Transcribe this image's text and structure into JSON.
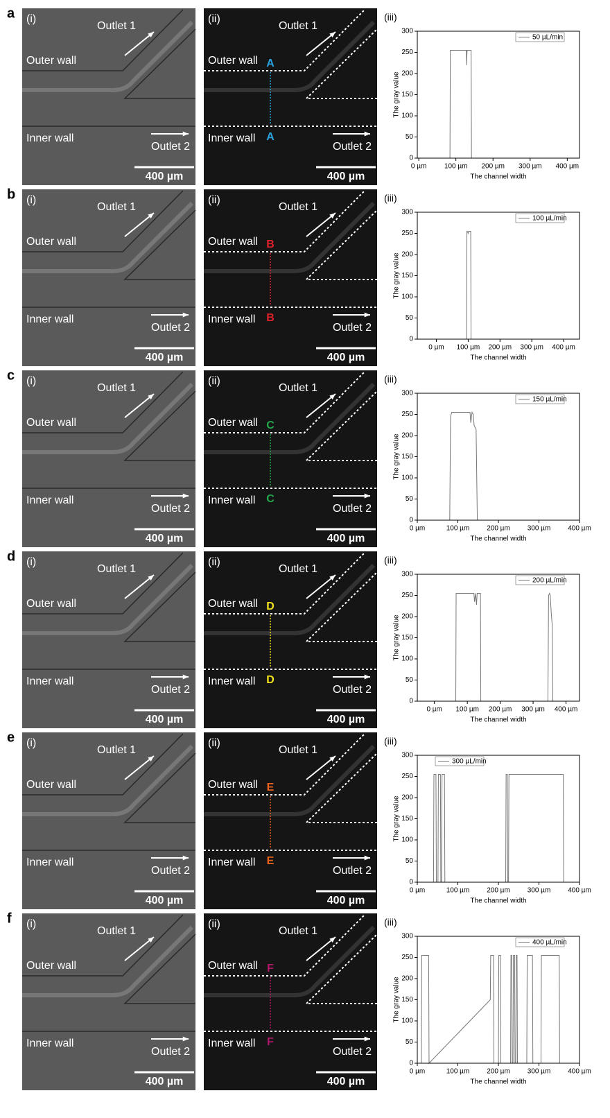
{
  "rows": [
    {
      "label": "a",
      "image1": {
        "tag": "(i)",
        "outlet1": "Outlet 1",
        "outer": "Outer wall",
        "inner": "Inner wall",
        "outlet2": "Outlet 2",
        "scale": "400 µm"
      },
      "image2": {
        "tag": "(ii)",
        "outlet1": "Outlet 1",
        "outer": "Outer wall",
        "inner": "Inner wall",
        "outlet2": "Outlet 2",
        "scale": "400 µm",
        "marker": "A",
        "marker_color": "#2aa3e0"
      },
      "chart_tag": "(iii)"
    },
    {
      "label": "b",
      "image1": {
        "tag": "(i)",
        "outlet1": "Outlet 1",
        "outer": "Outer wall",
        "inner": "Inner wall",
        "outlet2": "Outlet 2",
        "scale": "400 µm"
      },
      "image2": {
        "tag": "(ii)",
        "outlet1": "Outlet 1",
        "outer": "Outer wall",
        "inner": "Inner wall",
        "outlet2": "Outlet 2",
        "scale": "400 µm",
        "marker": "B",
        "marker_color": "#e0202a"
      },
      "chart_tag": "(iii)"
    },
    {
      "label": "c",
      "image1": {
        "tag": "(i)",
        "outlet1": "Outlet 1",
        "outer": "Outer wall",
        "inner": "Inner wall",
        "outlet2": "Outlet 2",
        "scale": "400 µm"
      },
      "image2": {
        "tag": "(ii)",
        "outlet1": "Outlet 1",
        "outer": "Outer wall",
        "inner": "Inner wall",
        "outlet2": "Outlet 2",
        "scale": "400 µm",
        "marker": "C",
        "marker_color": "#22a84a"
      },
      "chart_tag": "(iii)"
    },
    {
      "label": "d",
      "image1": {
        "tag": "(i)",
        "outlet1": "Outlet 1",
        "outer": "Outer wall",
        "inner": "Inner wall",
        "outlet2": "Outlet 2",
        "scale": "400 µm"
      },
      "image2": {
        "tag": "(ii)",
        "outlet1": "Outlet 1",
        "outer": "Outer wall",
        "inner": "Inner wall",
        "outlet2": "Outlet 2",
        "scale": "400 µm",
        "marker": "D",
        "marker_color": "#f2e21c"
      },
      "chart_tag": "(iii)"
    },
    {
      "label": "e",
      "image1": {
        "tag": "(i)",
        "outlet1": "Outlet 1",
        "outer": "Outer wall",
        "inner": "Inner wall",
        "outlet2": "Outlet 2",
        "scale": "400 µm"
      },
      "image2": {
        "tag": "(ii)",
        "outlet1": "Outlet 1",
        "outer": "Outer wall",
        "inner": "Inner wall",
        "outlet2": "Outlet 2",
        "scale": "400 µm",
        "marker": "E",
        "marker_color": "#e8621c"
      },
      "chart_tag": "(iii)"
    },
    {
      "label": "f",
      "image1": {
        "tag": "(i)",
        "outlet1": "Outlet 1",
        "outer": "Outer wall",
        "inner": "Inner wall",
        "outlet2": "Outlet 2",
        "scale": "400 µm"
      },
      "image2": {
        "tag": "(ii)",
        "outlet1": "Outlet 1",
        "outer": "Outer wall",
        "inner": "Inner wall",
        "outlet2": "Outlet 2",
        "scale": "400 µm",
        "marker": "F",
        "marker_color": "#b0186a"
      },
      "chart_tag": "(iii)"
    }
  ],
  "chart_data": [
    {
      "type": "line",
      "x_label": "The channel width",
      "y_label": "The gray value",
      "legend": "top-right",
      "xlim": [
        -4,
        433
      ],
      "xticks": [
        {
          "value": 0,
          "label": "0 µm"
        },
        {
          "value": 100,
          "label": "100 µm"
        },
        {
          "value": 200,
          "label": "200 µm"
        },
        {
          "value": 300,
          "label": "300 µm"
        },
        {
          "value": 400,
          "label": "400 µm"
        }
      ],
      "ylim": [
        0,
        300
      ],
      "yticks": [
        0,
        50,
        100,
        150,
        200,
        250,
        300
      ],
      "x": [
        84,
        85,
        87,
        128,
        129,
        130,
        131,
        141,
        142
      ],
      "series": [
        {
          "name": "50 µL/min",
          "color": "#777777",
          "values": [
            0,
            255,
            255,
            255,
            220,
            255,
            255,
            255,
            0
          ]
        }
      ]
    },
    {
      "type": "line",
      "x_label": "The channel width",
      "y_label": "The gray value",
      "legend": "top-right",
      "xlim": [
        -60,
        450
      ],
      "xticks": [
        {
          "value": 0,
          "label": "0 µm"
        },
        {
          "value": 100,
          "label": "100 µm"
        },
        {
          "value": 200,
          "label": "200 µm"
        },
        {
          "value": 300,
          "label": "300 µm"
        },
        {
          "value": 400,
          "label": "400 µm"
        }
      ],
      "ylim": [
        0,
        300
      ],
      "yticks": [
        0,
        50,
        100,
        150,
        200,
        250,
        300
      ],
      "x": [
        95,
        96,
        97,
        100,
        101,
        107,
        108,
        109
      ],
      "series": [
        {
          "name": "100 µL/min",
          "color": "#777777",
          "values": [
            0,
            255,
            255,
            250,
            255,
            255,
            255,
            0
          ]
        }
      ]
    },
    {
      "type": "line",
      "x_label": "The channel width",
      "y_label": "The gray value",
      "legend": "top-right",
      "xlim": [
        0,
        400
      ],
      "xticks": [
        {
          "value": 0,
          "label": "0 µm"
        },
        {
          "value": 100,
          "label": "100 µm"
        },
        {
          "value": 200,
          "label": "200 µm"
        },
        {
          "value": 300,
          "label": "300 µm"
        },
        {
          "value": 400,
          "label": "400 µm"
        }
      ],
      "ylim": [
        0,
        300
      ],
      "yticks": [
        0,
        50,
        100,
        150,
        200,
        250,
        300
      ],
      "x": [
        80,
        82,
        85,
        130,
        132,
        135,
        138,
        140,
        142,
        145,
        148
      ],
      "series": [
        {
          "name": "150 µL/min",
          "color": "#777777",
          "values": [
            0,
            245,
            255,
            255,
            230,
            255,
            250,
            225,
            220,
            215,
            0
          ]
        }
      ]
    },
    {
      "type": "line",
      "x_label": "The channel width",
      "y_label": "The gray value",
      "legend": "top-right",
      "xlim": [
        -52,
        441
      ],
      "xticks": [
        {
          "value": 0,
          "label": "0 µm"
        },
        {
          "value": 100,
          "label": "100 µm"
        },
        {
          "value": 200,
          "label": "200 µm"
        },
        {
          "value": 300,
          "label": "300 µm"
        },
        {
          "value": 400,
          "label": "400 µm"
        }
      ],
      "ylim": [
        0,
        300
      ],
      "yticks": [
        0,
        50,
        100,
        150,
        200,
        250,
        300
      ],
      "x": [
        65,
        66,
        68,
        120,
        122,
        125,
        128,
        130,
        133,
        140,
        141,
        345,
        347,
        350,
        352,
        355,
        358,
        360
      ],
      "series": [
        {
          "name": "200 µL/min",
          "color": "#777777",
          "values": [
            0,
            255,
            255,
            255,
            235,
            255,
            228,
            255,
            255,
            255,
            0,
            0,
            250,
            255,
            250,
            210,
            180,
            0
          ]
        }
      ]
    },
    {
      "type": "line",
      "x_label": "The channel width",
      "y_label": "The gray value",
      "legend": "top-left",
      "xlim": [
        0,
        400
      ],
      "xticks": [
        {
          "value": 0,
          "label": "0 µm"
        },
        {
          "value": 100,
          "label": "100 µm"
        },
        {
          "value": 200,
          "label": "200 µm"
        },
        {
          "value": 300,
          "label": "300 µm"
        },
        {
          "value": 400,
          "label": "400 µm"
        }
      ],
      "ylim": [
        0,
        300
      ],
      "yticks": [
        0,
        50,
        100,
        150,
        200,
        250,
        300
      ],
      "x": [
        40,
        41,
        46,
        47,
        51,
        52,
        57,
        58,
        60,
        61,
        67,
        68,
        218,
        219,
        222,
        223,
        225,
        226,
        360,
        361
      ],
      "series": [
        {
          "name": "300 µL/min",
          "color": "#777777",
          "values": [
            0,
            255,
            255,
            0,
            0,
            255,
            255,
            0,
            0,
            255,
            255,
            0,
            0,
            255,
            255,
            0,
            0,
            255,
            255,
            0
          ]
        }
      ]
    },
    {
      "type": "line",
      "x_label": "The channel width",
      "y_label": "The gray value",
      "legend": "top-right",
      "xlim": [
        0,
        400
      ],
      "xticks": [
        {
          "value": 0,
          "label": "0 µm"
        },
        {
          "value": 100,
          "label": "100 µm"
        },
        {
          "value": 200,
          "label": "200 µm"
        },
        {
          "value": 300,
          "label": "300 µm"
        },
        {
          "value": 400,
          "label": "400 µm"
        }
      ],
      "ylim": [
        0,
        300
      ],
      "yticks": [
        0,
        50,
        100,
        150,
        200,
        250,
        300
      ],
      "x": [
        10,
        11,
        28,
        29,
        180,
        181,
        188,
        189,
        200,
        201,
        205,
        206,
        230,
        231,
        233,
        234,
        236,
        237,
        240,
        241,
        243,
        244,
        246,
        247,
        270,
        271,
        284,
        285,
        305,
        306,
        350,
        351
      ],
      "series": [
        {
          "name": "400 µL/min",
          "color": "#777777",
          "values": [
            0,
            255,
            255,
            0,
            150,
            255,
            255,
            0,
            0,
            255,
            255,
            0,
            0,
            255,
            255,
            0,
            0,
            255,
            255,
            0,
            0,
            255,
            255,
            0,
            0,
            255,
            255,
            0,
            0,
            255,
            255,
            0
          ]
        }
      ]
    }
  ]
}
